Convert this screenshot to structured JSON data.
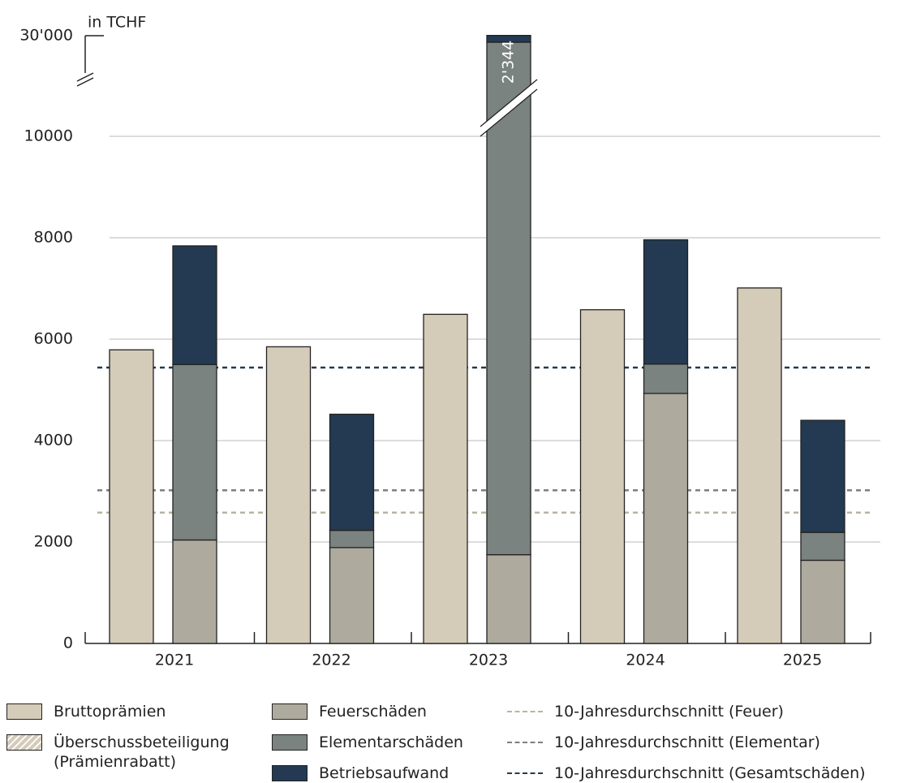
{
  "chart_data": {
    "type": "bar",
    "y_label": "in TCHF",
    "categories": [
      "2021",
      "2022",
      "2023",
      "2024",
      "2025"
    ],
    "series": [
      {
        "name": "Bruttoprämien",
        "color": "#d5cbb9",
        "values": [
          5790,
          5850,
          6490,
          6580,
          7010
        ]
      },
      {
        "name": "Überschussbeteiligung (Prämienrabatt)",
        "color": "#d5cbb9",
        "hatch": true,
        "values": [
          null,
          null,
          null,
          null,
          null
        ]
      },
      {
        "name": "Feuerschäden",
        "color": "#aeab9e",
        "stacked": true,
        "values": [
          2040,
          1890,
          1750,
          4930,
          1640
        ]
      },
      {
        "name": "Elementarschäden",
        "color": "#7a837f",
        "stacked": true,
        "values": [
          3460,
          340,
          26000,
          580,
          550
        ]
      },
      {
        "name": "Betriebsaufwand",
        "color": "#233a52",
        "stacked": true,
        "values": [
          2340,
          2290,
          2344,
          2450,
          2210
        ],
        "value_labels": [
          null,
          null,
          "2'344",
          null,
          null
        ]
      }
    ],
    "reference_lines": [
      {
        "name": "10-Jahresdurchschnitt (Feuer)",
        "color": "#b8b4a0",
        "value": 2580
      },
      {
        "name": "10-Jahresdurchschnitt (Elementar)",
        "color": "#7d7f82",
        "value": 3020
      },
      {
        "name": "10-Jahresdurchschnitt (Gesamtschäden)",
        "color": "#233a52",
        "value": 5440
      }
    ],
    "ylim": [
      0,
      30000
    ],
    "yticks": [
      0,
      2000,
      4000,
      6000,
      8000,
      10000,
      {
        "value": 30000,
        "label": "30'000"
      }
    ],
    "axis_break": true,
    "grid": true
  }
}
